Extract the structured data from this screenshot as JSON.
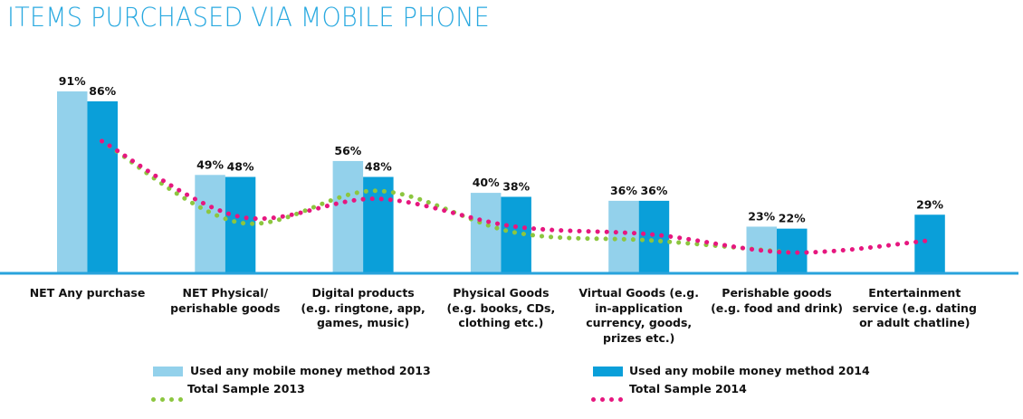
{
  "chart_data": {
    "type": "bar",
    "title": "ITEMS PURCHASED VIA MOBILE PHONE",
    "xlabel": "",
    "ylabel": "",
    "ylim": [
      0,
      100
    ],
    "grid": false,
    "legend_position": "bottom",
    "categories": [
      "NET Any purchase",
      "NET Physical/ perishable goods",
      "Digital products (e.g. ringtone, app, games, music)",
      "Physical Goods (e.g. books, CDs, clothing etc.)",
      "Virtual Goods (e.g. in-application currency, goods, prizes etc.)",
      "Perishable goods (e.g. food and drink)",
      "Entertainment service (e.g. dating or adult chatline)"
    ],
    "category_lines": [
      [
        "NET Any purchase"
      ],
      [
        "NET Physical/",
        "perishable goods"
      ],
      [
        "Digital products",
        "(e.g. ringtone, app,",
        "games, music)"
      ],
      [
        "Physical Goods",
        "(e.g. books, CDs,",
        "clothing etc.)"
      ],
      [
        "Virtual Goods (e.g.",
        "in-application",
        "currency, goods,",
        "prizes etc.)"
      ],
      [
        "Perishable goods",
        "(e.g. food and drink)"
      ],
      [
        "Entertainment",
        "service (e.g. dating",
        "or adult chatline)"
      ]
    ],
    "series": [
      {
        "name": "Used any mobile money method 2013",
        "kind": "bar",
        "color": "#93d1eb",
        "values": [
          91,
          49,
          56,
          40,
          36,
          23,
          null
        ],
        "labels": [
          "91%",
          "49%",
          "56%",
          "40%",
          "36%",
          "23%",
          null
        ]
      },
      {
        "name": "Used any mobile money method 2014",
        "kind": "bar",
        "color": "#0a9fd9",
        "values": [
          86,
          48,
          48,
          38,
          36,
          22,
          29
        ],
        "labels": [
          "86%",
          "48%",
          "48%",
          "38%",
          "36%",
          "22%",
          "29%"
        ]
      },
      {
        "name": "Total Sample 2013",
        "kind": "dotted-line",
        "color": "#8cc63f",
        "values": [
          66,
          25,
          41,
          20,
          16,
          10,
          null
        ]
      },
      {
        "name": "Total Sample 2014",
        "kind": "dotted-line",
        "color": "#e6177f",
        "values": [
          66,
          28,
          37,
          23,
          19,
          10,
          16
        ]
      }
    ]
  },
  "colors": {
    "title": "#29a9e0",
    "axis": "#29a3dc"
  }
}
